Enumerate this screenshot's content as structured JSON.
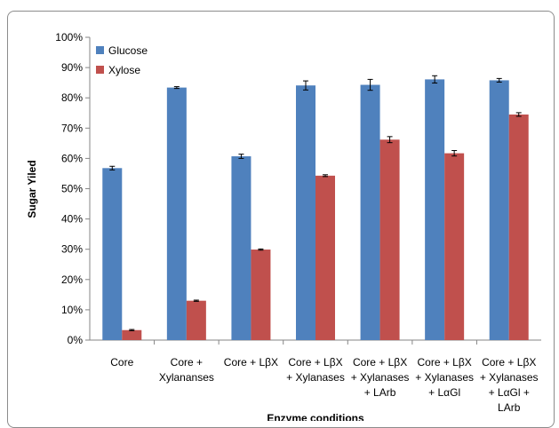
{
  "chart_data": {
    "type": "bar",
    "title": "",
    "xlabel": "Enzyme conditions",
    "ylabel": "Sugar Yiled",
    "ylim": [
      0,
      1.0
    ],
    "yticks": [
      "0%",
      "10%",
      "20%",
      "30%",
      "40%",
      "50%",
      "60%",
      "70%",
      "80%",
      "90%",
      "100%"
    ],
    "grid": false,
    "legend_position": "top-left",
    "categories": [
      [
        "Core"
      ],
      [
        "Core +",
        "Xylananses"
      ],
      [
        "Core + LβX"
      ],
      [
        "Core + LβX",
        "+ Xylanases"
      ],
      [
        "Core + LβX",
        "+ Xylanases",
        "+ LArb"
      ],
      [
        "Core + LβX",
        "+ Xylanases",
        "+ LαGl"
      ],
      [
        "Core + LβX",
        "+ Xylanases",
        "+ LαGl +",
        "LArb"
      ]
    ],
    "series": [
      {
        "name": "Glucose",
        "color": "#4f81bd",
        "values": [
          0.568,
          0.834,
          0.607,
          0.841,
          0.843,
          0.861,
          0.858
        ],
        "errors": [
          0.006,
          0.003,
          0.007,
          0.015,
          0.018,
          0.012,
          0.006
        ]
      },
      {
        "name": "Xylose",
        "color": "#c0504d",
        "values": [
          0.033,
          0.13,
          0.299,
          0.543,
          0.662,
          0.617,
          0.745
        ],
        "errors": [
          0.002,
          0.002,
          0.002,
          0.003,
          0.01,
          0.009,
          0.006
        ]
      }
    ]
  }
}
